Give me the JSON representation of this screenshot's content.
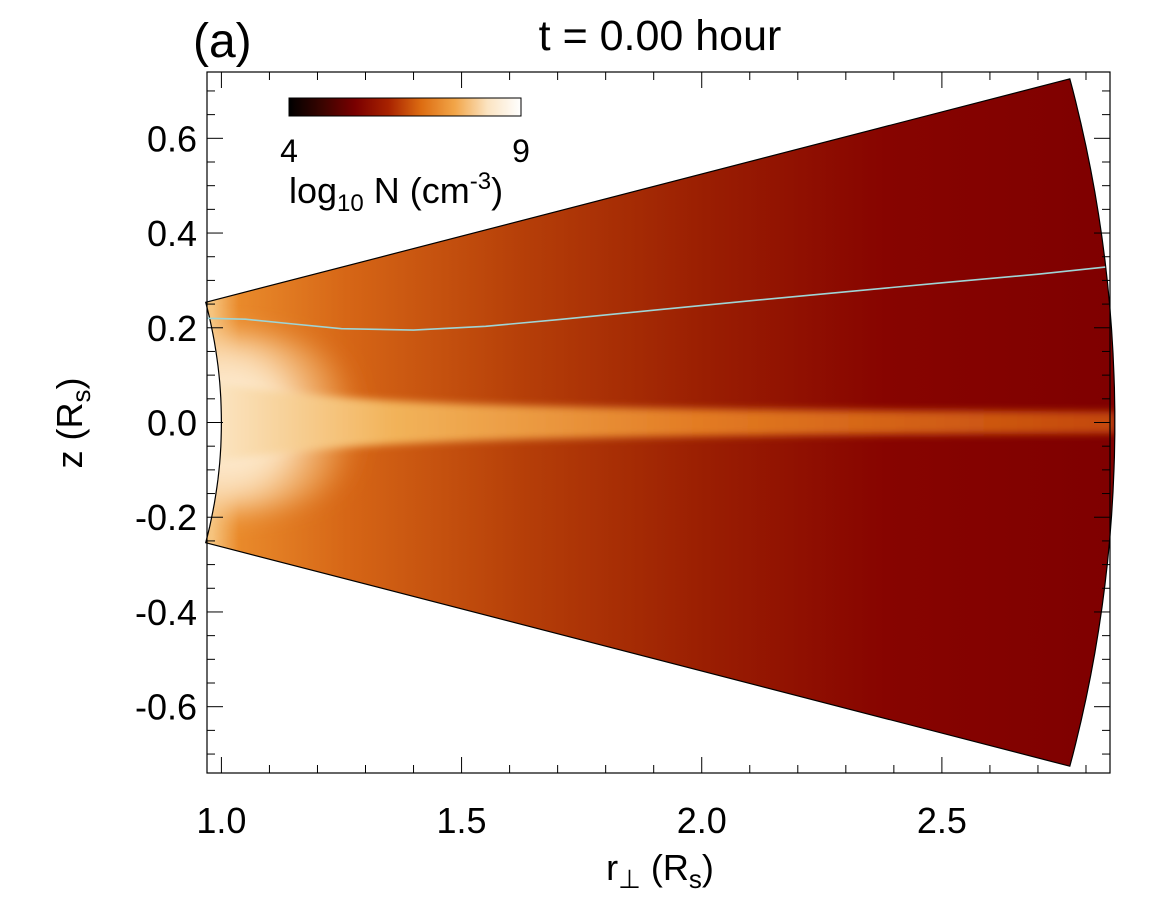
{
  "chart_data": {
    "type": "heatmap",
    "panel_label": "(a)",
    "title": "t = 0.00 hour",
    "xlabel": "r⊥ (Rs)",
    "xlabel_parts": {
      "main": "r",
      "sub1": "⊥",
      "mid": " (R",
      "sub2": "s",
      "end": ")"
    },
    "ylabel": "z (Rs)",
    "ylabel_parts": {
      "main": "z (R",
      "sub": "s",
      "end": ")"
    },
    "xlim": [
      0.97,
      2.85
    ],
    "ylim": [
      -0.74,
      0.74
    ],
    "x_ticks": [
      1.0,
      1.5,
      2.0,
      2.5
    ],
    "x_tick_labels": [
      "1.0",
      "1.5",
      "2.0",
      "2.5"
    ],
    "y_ticks": [
      0.6,
      0.4,
      0.2,
      0.0,
      -0.2,
      -0.4,
      -0.6
    ],
    "y_tick_labels": [
      "0.6",
      "0.4",
      "0.2",
      "0.0",
      "-0.2",
      "-0.4",
      "-0.6"
    ],
    "x_minor_step": 0.1,
    "y_minor_step": 0.05,
    "domain": {
      "r_min": 1.0,
      "r_max": 2.86,
      "half_angle_deg": 14.7
    },
    "colorbar": {
      "min": 4,
      "max": 9,
      "min_label": "4",
      "max_label": "9",
      "label_parts": {
        "main": "log",
        "sub": "10",
        "mid": " N (cm",
        "sup": "-3",
        "end": ")"
      },
      "colors": [
        "#000000",
        "#3a0400",
        "#7a0000",
        "#a82200",
        "#dd6d12",
        "#f2a548",
        "#fbe4c2",
        "#ffffff"
      ]
    },
    "field_line": {
      "color": "#9fd5d6",
      "x": [
        0.97,
        1.05,
        1.15,
        1.25,
        1.4,
        1.55,
        1.7,
        1.9,
        2.1,
        2.3,
        2.5,
        2.7,
        2.84
      ],
      "y": [
        0.22,
        0.218,
        0.208,
        0.198,
        0.195,
        0.203,
        0.217,
        0.237,
        0.257,
        0.276,
        0.295,
        0.313,
        0.328
      ]
    }
  }
}
